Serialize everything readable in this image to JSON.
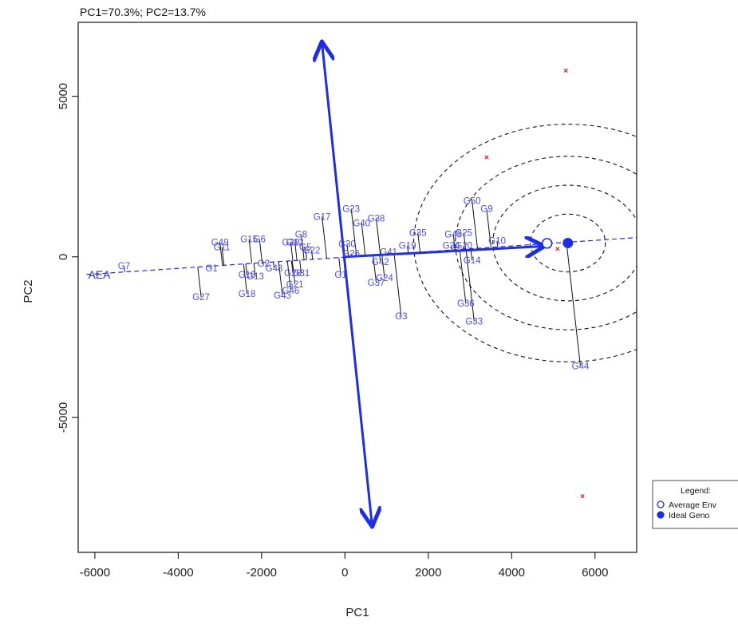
{
  "chart_data": {
    "type": "scatter",
    "title": "PC1=70.3%; PC2=13.7%",
    "xlabel": "PC1",
    "ylabel": "PC2",
    "xlim": [
      -6400,
      7000
    ],
    "ylim": [
      -9200,
      7300
    ],
    "xticks": [
      -6000,
      -4000,
      -2000,
      0,
      2000,
      4000,
      6000
    ],
    "yticks": [
      -5000,
      0,
      5000
    ],
    "grid": false,
    "ata_axis": {
      "from": [
        -6200,
        -550
      ],
      "to": [
        7000,
        600
      ],
      "label": "AEA",
      "style": "dashed",
      "color": "#2a2ad0"
    },
    "ata_arrow": {
      "from": [
        0,
        0
      ],
      "to": [
        4750,
        330
      ],
      "color": "#1e2ee0"
    },
    "atc_axis": {
      "from": [
        -550,
        6650
      ],
      "to": [
        650,
        -8350
      ],
      "color": "#1e2ee0"
    },
    "average_environment": {
      "x": 4850,
      "y": 420
    },
    "ideal_genotype": {
      "x": 5350,
      "y": 430
    },
    "concentric_circles": {
      "center": [
        5350,
        430
      ],
      "radii": [
        900,
        1800,
        2700,
        3700
      ]
    },
    "environment_points": [
      {
        "x": 5300,
        "y": 5800
      },
      {
        "x": 3400,
        "y": 3100
      },
      {
        "x": 5100,
        "y": 250
      },
      {
        "x": 5700,
        "y": -7450
      }
    ],
    "genotypes": [
      {
        "name": "G7",
        "x": -5300,
        "y": -280
      },
      {
        "name": "G27",
        "x": -3450,
        "y": -1250
      },
      {
        "name": "G1",
        "x": -3200,
        "y": -350
      },
      {
        "name": "G49",
        "x": -3000,
        "y": 450
      },
      {
        "name": "G11",
        "x": -2950,
        "y": 300
      },
      {
        "name": "G18",
        "x": -2350,
        "y": -1150
      },
      {
        "name": "G16",
        "x": -2350,
        "y": -550
      },
      {
        "name": "G13",
        "x": -2150,
        "y": -600
      },
      {
        "name": "G15",
        "x": -2300,
        "y": 550
      },
      {
        "name": "G6",
        "x": -2050,
        "y": 550
      },
      {
        "name": "G2",
        "x": -1950,
        "y": -200
      },
      {
        "name": "G48",
        "x": -1700,
        "y": -350
      },
      {
        "name": "G43",
        "x": -1500,
        "y": -1200
      },
      {
        "name": "G46",
        "x": -1300,
        "y": -1050
      },
      {
        "name": "G21",
        "x": -1200,
        "y": -850
      },
      {
        "name": "G31",
        "x": -1050,
        "y": -500
      },
      {
        "name": "G28",
        "x": -1250,
        "y": -500
      },
      {
        "name": "G39",
        "x": -1300,
        "y": 450
      },
      {
        "name": "G12",
        "x": -1200,
        "y": 450
      },
      {
        "name": "G8",
        "x": -1050,
        "y": 700
      },
      {
        "name": "G5",
        "x": -950,
        "y": 300
      },
      {
        "name": "G22",
        "x": -800,
        "y": 200
      },
      {
        "name": "G17",
        "x": -550,
        "y": 1250
      },
      {
        "name": "G1b",
        "x": -100,
        "y": -550
      },
      {
        "name": "G23",
        "x": 150,
        "y": 1500
      },
      {
        "name": "G40",
        "x": 400,
        "y": 1050
      },
      {
        "name": "G38",
        "x": 750,
        "y": 1200
      },
      {
        "name": "G30",
        "x": 50,
        "y": 400
      },
      {
        "name": "G26",
        "x": 150,
        "y": 100
      },
      {
        "name": "G42",
        "x": 850,
        "y": -150
      },
      {
        "name": "G37",
        "x": 750,
        "y": -800
      },
      {
        "name": "G24",
        "x": 950,
        "y": -650
      },
      {
        "name": "G41",
        "x": 1050,
        "y": 150
      },
      {
        "name": "G3",
        "x": 1350,
        "y": -1850
      },
      {
        "name": "G19",
        "x": 1500,
        "y": 350
      },
      {
        "name": "G35",
        "x": 1750,
        "y": 750
      },
      {
        "name": "G45",
        "x": 2600,
        "y": 700
      },
      {
        "name": "G25",
        "x": 2850,
        "y": 750
      },
      {
        "name": "G34",
        "x": 2550,
        "y": 350
      },
      {
        "name": "G20",
        "x": 2850,
        "y": 350
      },
      {
        "name": "G14",
        "x": 3050,
        "y": -100
      },
      {
        "name": "G36",
        "x": 2900,
        "y": -1450
      },
      {
        "name": "G33",
        "x": 3100,
        "y": -2000
      },
      {
        "name": "G50",
        "x": 3050,
        "y": 1750
      },
      {
        "name": "G9",
        "x": 3400,
        "y": 1500
      },
      {
        "name": "G10",
        "x": 3650,
        "y": 500
      },
      {
        "name": "G44",
        "x": 5650,
        "y": -3400
      }
    ],
    "genotype_label_text": {
      "G1b": "G1"
    },
    "legend": {
      "title": "Legend:",
      "placement": "bottom-right",
      "entries": [
        {
          "label": "Average Env",
          "symbol": "open-circle"
        },
        {
          "label": "Ideal Geno",
          "symbol": "filled-circle"
        }
      ]
    },
    "colors": {
      "genotype": "#4a4af0",
      "axis_blue": "#1e2ee0",
      "environment": "#e02020",
      "circles": "#111111"
    }
  }
}
